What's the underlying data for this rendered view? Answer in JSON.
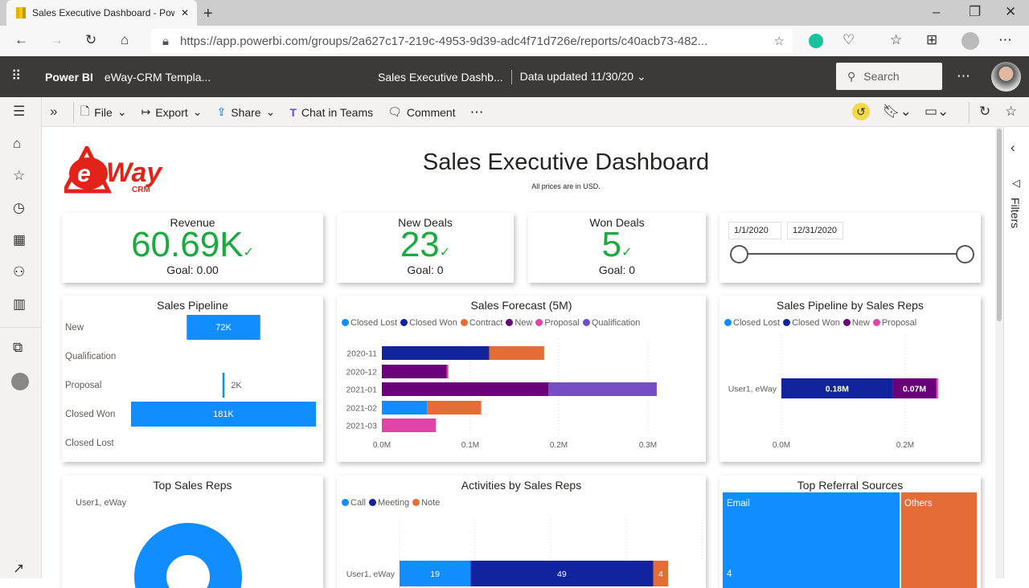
{
  "browser": {
    "tab_title": "Sales Executive Dashboard - Pow",
    "url": "https://app.powerbi.com/groups/2a627c17-219c-4953-9d39-adc4f71d726e/reports/c40acb73-482..."
  },
  "header": {
    "app": "Power BI",
    "workspace": "eWay-CRM Templa...",
    "report": "Sales Executive Dashb...",
    "updated": "Data updated 11/30/20",
    "search_placeholder": "Search"
  },
  "toolbar": {
    "file": "File",
    "export": "Export",
    "share": "Share",
    "teams": "Chat in Teams",
    "comment": "Comment"
  },
  "filters_label": "Filters",
  "report": {
    "logo": "eWay CRM",
    "title": "Sales Executive Dashboard",
    "subtitle": "All prices are in USD."
  },
  "kpis": [
    {
      "title": "Revenue",
      "value": "60.69K",
      "goal": "Goal: 0.00"
    },
    {
      "title": "New Deals",
      "value": "23",
      "goal": "Goal: 0"
    },
    {
      "title": "Won Deals",
      "value": "5",
      "goal": "Goal: 0"
    }
  ],
  "slicer": {
    "start": "1/1/2020",
    "end": "12/31/2020"
  },
  "colors": {
    "Closed Lost": "#118dff",
    "Closed Won": "#12239e",
    "Contract": "#e66c37",
    "New": "#6b007b",
    "Proposal": "#e044a7",
    "Qualification": "#744ec2",
    "Call": "#118dff",
    "Meeting": "#12239e",
    "Note": "#e66c37"
  },
  "chart_data": [
    {
      "type": "funnel",
      "title": "Sales Pipeline",
      "categories": [
        "New",
        "Qualification",
        "Proposal",
        "Closed Won",
        "Closed Lost"
      ],
      "values": [
        72000,
        0,
        2000,
        181000,
        0
      ],
      "labels": [
        "72K",
        "",
        "2K",
        "181K",
        ""
      ]
    },
    {
      "type": "bar",
      "stacked": true,
      "orientation": "horizontal",
      "title": "Sales Forecast (5M)",
      "categories": [
        "2020-11",
        "2020-12",
        "2021-01",
        "2021-02",
        "2021-03"
      ],
      "series": [
        {
          "name": "Closed Lost",
          "values": [
            0,
            0,
            0,
            0.051,
            0
          ]
        },
        {
          "name": "Closed Won",
          "values": [
            0.121,
            0,
            0,
            0,
            0
          ]
        },
        {
          "name": "Contract",
          "values": [
            0.062,
            0,
            0,
            0.061,
            0
          ]
        },
        {
          "name": "New",
          "values": [
            0,
            0.073,
            0.188,
            0,
            0
          ]
        },
        {
          "name": "Proposal",
          "values": [
            0,
            0.002,
            0,
            0,
            0.061
          ]
        },
        {
          "name": "Qualification",
          "values": [
            0,
            0,
            0.122,
            0,
            0
          ]
        }
      ],
      "xticks": [
        "0.0M",
        "0.1M",
        "0.2M",
        "0.3M"
      ],
      "xlim": [
        0,
        0.3
      ],
      "legend": "top-left"
    },
    {
      "type": "bar",
      "stacked": true,
      "orientation": "horizontal",
      "title": "Sales Pipeline by Sales Reps",
      "categories": [
        "User1, eWay"
      ],
      "series": [
        {
          "name": "Closed Lost",
          "values": [
            0
          ]
        },
        {
          "name": "Closed Won",
          "values": [
            0.18
          ],
          "label": "0.18M"
        },
        {
          "name": "New",
          "values": [
            0.07
          ],
          "label": "0.07M"
        },
        {
          "name": "Proposal",
          "values": [
            0.003
          ]
        }
      ],
      "xticks": [
        "0.0M",
        "0.2M"
      ],
      "legend": "top-left"
    },
    {
      "type": "pie",
      "title": "Top Sales Reps",
      "categories": [
        "User1, eWay"
      ],
      "values": [
        1
      ],
      "legend": "top-left"
    },
    {
      "type": "bar",
      "stacked": true,
      "orientation": "horizontal",
      "title": "Activities by Sales Reps",
      "categories": [
        "User1, eWay"
      ],
      "series": [
        {
          "name": "Call",
          "values": [
            19
          ]
        },
        {
          "name": "Meeting",
          "values": [
            49
          ]
        },
        {
          "name": "Note",
          "values": [
            4
          ]
        }
      ],
      "legend": "top-left"
    },
    {
      "type": "treemap",
      "title": "Top Referral Sources",
      "categories": [
        "Email",
        "Others"
      ],
      "values": [
        4,
        null
      ],
      "labels": [
        "4",
        ""
      ]
    }
  ]
}
